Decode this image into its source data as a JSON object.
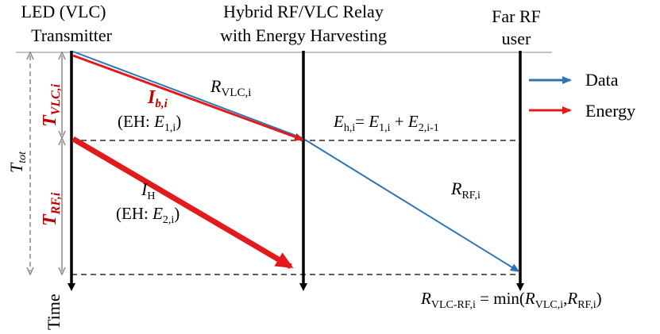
{
  "headers": {
    "transmitter_line1": "LED (VLC)",
    "transmitter_line2": "Transmitter",
    "relay_line1": "Hybrid RF/VLC Relay",
    "relay_line2": "with Energy Harvesting",
    "user_line1": "Far RF",
    "user_line2": "user"
  },
  "labels": {
    "t_vlc": {
      "main": "T",
      "sub": "VLC,i"
    },
    "t_rf": {
      "main": "T",
      "sub": "RF,i"
    },
    "t_tot": {
      "main": "T",
      "sub": "tot"
    },
    "i_b": {
      "main": "I",
      "sub": "b,i"
    },
    "eh1": {
      "pre": "(EH: ",
      "main": "E",
      "sub": "1,i",
      "post": ")"
    },
    "r_vlc": {
      "main": "R",
      "sub": "VLC,i"
    },
    "e_h": {
      "main": "E",
      "sub": "h,i",
      "eq": "= ",
      "t1": "E",
      "t1sub": "1,i",
      "plus": " + ",
      "t2": "E",
      "t2sub": "2,i-1"
    },
    "i_h": {
      "main": "I",
      "sub": "H"
    },
    "eh2": {
      "pre": "(EH: ",
      "main": "E",
      "sub": "2,i",
      "post": ")"
    },
    "r_rf": {
      "main": "R",
      "sub": "RF,i"
    },
    "r_total": {
      "main": "R",
      "sub": "VLC-RF,i",
      "eq": " = min(",
      "a": "R",
      "asub": "VLC,i",
      "comma": ",",
      "b": "R",
      "bsub": "RF,i",
      "close": ")"
    },
    "time": "Time"
  },
  "legend": {
    "data": {
      "label": "Data",
      "color": "#2e75b6"
    },
    "energy": {
      "label": "Energy",
      "color": "#e31a1c"
    }
  }
}
